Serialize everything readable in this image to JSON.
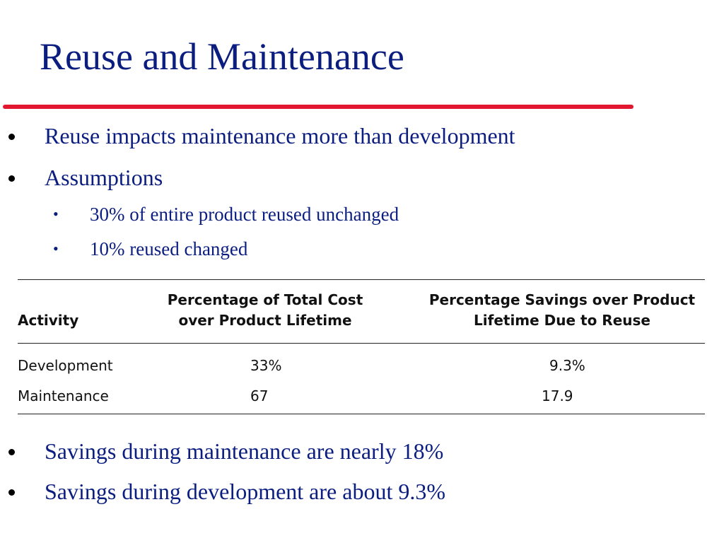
{
  "title": "Reuse and Maintenance",
  "bullets_top": [
    "Reuse impacts maintenance more than development",
    "Assumptions"
  ],
  "sub_bullets": [
    "30% of entire product reused unchanged",
    "10% reused changed"
  ],
  "table": {
    "headers": {
      "activity": "Activity",
      "cost": [
        "Percentage of Total Cost",
        "over Product Lifetime"
      ],
      "savings": [
        "Percentage Savings over Product",
        "Lifetime Due to Reuse"
      ]
    },
    "rows": [
      {
        "activity": "Development",
        "cost": "33%",
        "savings": "9.3%"
      },
      {
        "activity": "Maintenance",
        "cost": "67",
        "savings": "17.9"
      }
    ]
  },
  "bullets_bottom": [
    "Savings during maintenance are nearly 18%",
    "Savings during development are about 9.3%"
  ],
  "colors": {
    "text_blue": "#0b1e80",
    "rule_red": "#e3162f"
  }
}
